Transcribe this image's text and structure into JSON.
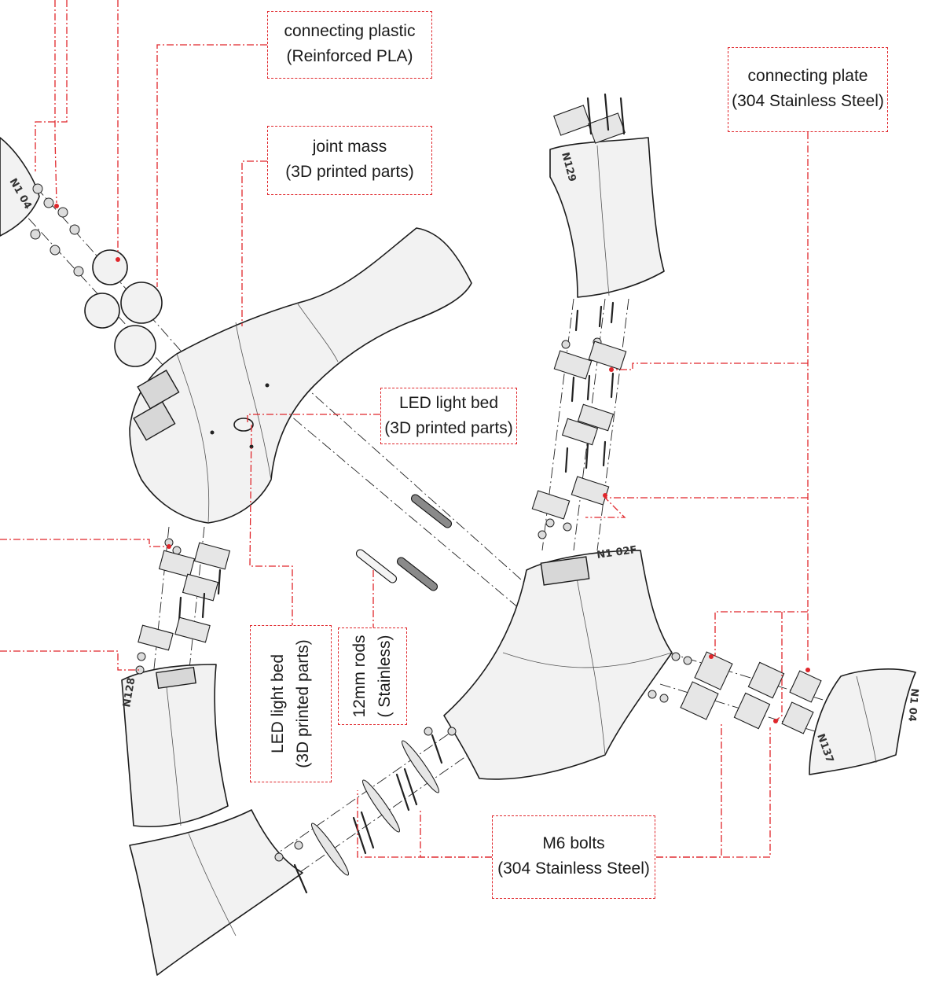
{
  "labels": {
    "connecting_plastic": {
      "line1": "connecting plastic",
      "line2": "(Reinforced PLA)"
    },
    "joint_mass": {
      "line1": "joint mass",
      "line2": "(3D printed parts)"
    },
    "connecting_plate": {
      "line1": "connecting plate",
      "line2": "(304 Stainless Steel)"
    },
    "led_light_bed_right": {
      "line1": "LED light bed",
      "line2": "(3D printed parts)"
    },
    "led_light_bed_vertical": {
      "line1": "LED light bed",
      "line2": "(3D printed parts)"
    },
    "rods": {
      "line1": "12mm rods",
      "line2": "( Stainless)"
    },
    "m6_bolts": {
      "line1": "M6 bolts",
      "line2": "(304 Stainless Steel)"
    }
  },
  "node_tags": {
    "upper_left": "N1 04",
    "top_right": "N129",
    "bottom_left": "N128",
    "middle_right": "N1 02F",
    "far_right_top": "N1 04",
    "far_right": "N137"
  },
  "colors": {
    "leader": "#e0262b",
    "outline": "#1c1c1c",
    "part_fill": "#f2f2f2"
  }
}
